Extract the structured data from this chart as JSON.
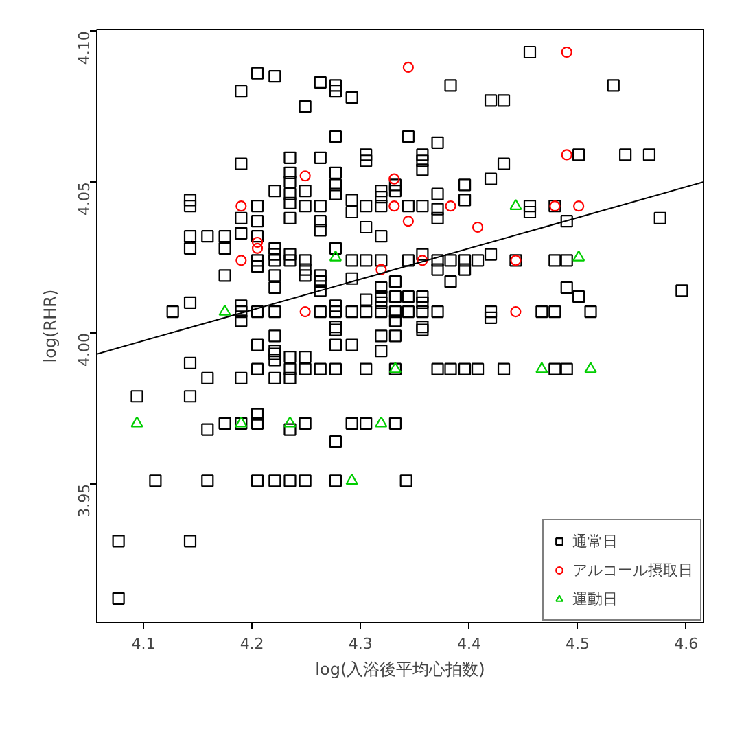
{
  "chart_data": {
    "type": "scatter",
    "xlabel": "log(入浴後平均心拍数)",
    "ylabel": "log(RHR)",
    "xlim": [
      4.057,
      4.616
    ],
    "ylim": [
      3.904,
      4.1005
    ],
    "xticks": [
      4.1,
      4.2,
      4.3,
      4.4,
      4.5,
      4.6
    ],
    "yticks": [
      {
        "value": 3.95,
        "label": "3.95"
      },
      {
        "value": 4.0,
        "label": "4.00"
      },
      {
        "value": 4.05,
        "label": "4.05"
      },
      {
        "value": 4.1,
        "label": "4.10"
      }
    ],
    "grid": false,
    "legend": "bottom right",
    "series": [
      {
        "name": "通常日",
        "marker": "square",
        "color": "#000000",
        "x": [
          4.205,
          4.221,
          4.19,
          4.263,
          4.277,
          4.277,
          4.292,
          4.249,
          4.277,
          4.19,
          4.235,
          4.263,
          4.305,
          4.305,
          4.235,
          4.235,
          4.235,
          4.235,
          4.249,
          4.277,
          4.277,
          4.277,
          4.221,
          4.143,
          4.143,
          4.19,
          4.205,
          4.205,
          4.235,
          4.249,
          4.263,
          4.292,
          4.292,
          4.305,
          4.319,
          4.319,
          4.319,
          4.332,
          4.332,
          4.305,
          4.319,
          4.263,
          4.263,
          4.143,
          4.143,
          4.159,
          4.175,
          4.175,
          4.19,
          4.205,
          4.205,
          4.205,
          4.221,
          4.221,
          4.221,
          4.235,
          4.235,
          4.249,
          4.249,
          4.249,
          4.263,
          4.263,
          4.263,
          4.277,
          4.292,
          4.305,
          4.319,
          4.292,
          4.175,
          4.221,
          4.221,
          4.332,
          4.319,
          4.319,
          4.319,
          4.305,
          4.332,
          4.143,
          4.127,
          4.19,
          4.19,
          4.19,
          4.205,
          4.221,
          4.263,
          4.277,
          4.277,
          4.292,
          4.305,
          4.319,
          4.332,
          4.332,
          4.277,
          4.456,
          4.383,
          4.533,
          4.42,
          4.432,
          4.344,
          4.371,
          4.357,
          4.357,
          4.357,
          4.501,
          4.544,
          4.566,
          4.432,
          4.396,
          4.42,
          4.371,
          4.396,
          4.344,
          4.357,
          4.371,
          4.371,
          4.456,
          4.456,
          4.479,
          4.49,
          4.576,
          4.344,
          4.357,
          4.371,
          4.383,
          4.396,
          4.408,
          4.42,
          4.443,
          4.479,
          4.49,
          4.371,
          4.396,
          4.383,
          4.49,
          4.501,
          4.596,
          4.344,
          4.357,
          4.357,
          4.344,
          4.357,
          4.371,
          4.42,
          4.42,
          4.467,
          4.479,
          4.512,
          4.357,
          4.205,
          4.221,
          4.221,
          4.221,
          4.221,
          4.235,
          4.235,
          4.249,
          4.249,
          4.263,
          4.277,
          4.277,
          4.292,
          4.277,
          4.305,
          4.319,
          4.332,
          4.319,
          4.332,
          4.143,
          4.205,
          4.159,
          4.19,
          4.221,
          4.235,
          4.094,
          4.143,
          4.205,
          4.159,
          4.175,
          4.19,
          4.205,
          4.235,
          4.249,
          4.277,
          4.292,
          4.305,
          4.332,
          4.111,
          4.159,
          4.205,
          4.221,
          4.235,
          4.249,
          4.277,
          4.342,
          4.077,
          4.143,
          4.077,
          4.357,
          4.371,
          4.383,
          4.396,
          4.408,
          4.432,
          4.479,
          4.49
        ],
        "values": [
          4.086,
          4.085,
          4.08,
          4.083,
          4.082,
          4.08,
          4.078,
          4.075,
          4.065,
          4.056,
          4.058,
          4.058,
          4.059,
          4.057,
          4.053,
          4.05,
          4.046,
          4.043,
          4.047,
          4.053,
          4.049,
          4.046,
          4.047,
          4.044,
          4.042,
          4.038,
          4.042,
          4.037,
          4.038,
          4.042,
          4.042,
          4.044,
          4.04,
          4.042,
          4.047,
          4.045,
          4.042,
          4.049,
          4.047,
          4.035,
          4.032,
          4.037,
          4.034,
          4.032,
          4.028,
          4.032,
          4.032,
          4.028,
          4.033,
          4.032,
          4.024,
          4.022,
          4.028,
          4.026,
          4.024,
          4.026,
          4.024,
          4.024,
          4.021,
          4.019,
          4.019,
          4.017,
          4.014,
          4.028,
          4.024,
          4.024,
          4.024,
          4.018,
          4.019,
          4.019,
          4.015,
          4.017,
          4.015,
          4.012,
          4.01,
          4.011,
          4.012,
          4.01,
          4.007,
          4.009,
          4.007,
          4.004,
          4.007,
          4.007,
          4.007,
          4.009,
          4.007,
          4.007,
          4.007,
          4.007,
          4.007,
          4.004,
          4.002,
          4.093,
          4.082,
          4.082,
          4.077,
          4.077,
          4.065,
          4.063,
          4.059,
          4.057,
          4.054,
          4.059,
          4.059,
          4.059,
          4.056,
          4.049,
          4.051,
          4.046,
          4.044,
          4.042,
          4.042,
          4.041,
          4.038,
          4.042,
          4.04,
          4.042,
          4.037,
          4.038,
          4.024,
          4.026,
          4.024,
          4.024,
          4.024,
          4.024,
          4.026,
          4.024,
          4.024,
          4.024,
          4.021,
          4.021,
          4.017,
          4.015,
          4.012,
          4.014,
          4.012,
          4.012,
          4.01,
          4.007,
          4.007,
          4.007,
          4.007,
          4.005,
          4.007,
          4.007,
          4.007,
          4.002,
          3.996,
          3.999,
          3.994,
          3.993,
          3.991,
          3.992,
          3.988,
          3.992,
          3.988,
          3.988,
          4.001,
          3.996,
          3.996,
          3.988,
          3.988,
          3.999,
          3.999,
          3.994,
          3.988,
          3.99,
          3.988,
          3.985,
          3.985,
          3.985,
          3.985,
          3.979,
          3.979,
          3.973,
          3.968,
          3.97,
          3.97,
          3.97,
          3.968,
          3.97,
          3.964,
          3.97,
          3.97,
          3.97,
          3.951,
          3.951,
          3.951,
          3.951,
          3.951,
          3.951,
          3.951,
          3.951,
          3.931,
          3.931,
          3.912,
          4.001,
          3.988,
          3.988,
          3.988,
          3.988,
          3.988,
          3.988,
          3.988
        ]
      },
      {
        "name": "アルコール摂取日",
        "marker": "circle",
        "color": "#ff0000",
        "x": [
          4.249,
          4.19,
          4.205,
          4.205,
          4.19,
          4.319,
          4.249,
          4.331,
          4.331,
          4.344,
          4.49,
          4.49,
          4.383,
          4.479,
          4.501,
          4.344,
          4.408,
          4.357,
          4.443,
          4.443
        ],
        "values": [
          4.052,
          4.042,
          4.03,
          4.028,
          4.024,
          4.021,
          4.007,
          4.051,
          4.042,
          4.088,
          4.093,
          4.059,
          4.042,
          4.042,
          4.042,
          4.037,
          4.035,
          4.024,
          4.024,
          4.007
        ]
      },
      {
        "name": "運動日",
        "marker": "triangle",
        "color": "#00cd00",
        "x": [
          4.277,
          4.175,
          4.443,
          4.501,
          4.094,
          4.19,
          4.235,
          4.319,
          4.332,
          4.292,
          4.467,
          4.512
        ],
        "values": [
          4.025,
          4.007,
          4.042,
          4.025,
          3.97,
          3.97,
          3.97,
          3.97,
          3.988,
          3.951,
          3.988,
          3.988
        ]
      },
      {
        "type": "line",
        "color": "#000000",
        "x": [
          4.057,
          4.616
        ],
        "values": [
          3.993,
          4.05
        ]
      }
    ]
  }
}
